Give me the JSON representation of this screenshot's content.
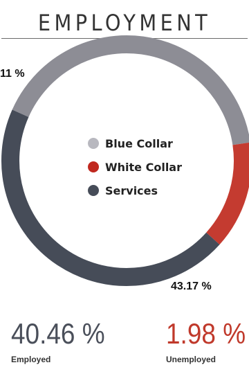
{
  "title": "EMPLOYMENT",
  "colors": {
    "blue_collar": "#8d8d95",
    "white_collar": "#c43b30",
    "services": "#464c58"
  },
  "chart_data": {
    "type": "pie",
    "variant": "donut",
    "series": [
      {
        "name": "Blue Collar",
        "value": 41,
        "color": "#8d8d95"
      },
      {
        "name": "White Collar",
        "value": 14,
        "color": "#c43b30"
      },
      {
        "name": "Services",
        "value": 45,
        "color": "#464c58"
      }
    ],
    "labels": {
      "top_left": "11 %",
      "bottom": "43.17 %"
    },
    "legend": [
      "Blue Collar",
      "White Collar",
      "Services"
    ],
    "legend_position": "center"
  },
  "stats": {
    "employed": {
      "value": "40.46 %",
      "label": "Employed",
      "color": "#4a4f5a"
    },
    "unemployed": {
      "value": "1.98 %",
      "label": "Unemployed",
      "color": "#c0392b"
    }
  }
}
